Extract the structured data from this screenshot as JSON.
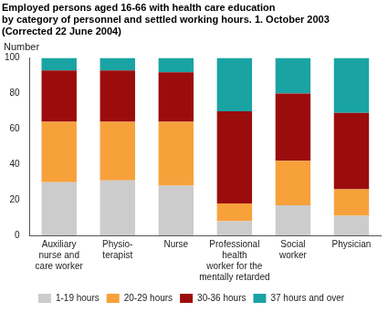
{
  "chart_data": {
    "type": "bar",
    "title": [
      "Employed persons aged 16-66 with health care education",
      "by category of personnel and settled working hours. 1. October 2003",
      "(Corrected 22 June 2004)"
    ],
    "y_label": "Number",
    "categories": [
      [
        "Auxiliary",
        "nurse and",
        "care worker"
      ],
      [
        "Physio-",
        "terapist"
      ],
      [
        "Nurse"
      ],
      [
        "Professional",
        "health",
        "worker for the",
        "mentally retarded"
      ],
      [
        "Social",
        "worker"
      ],
      [
        "Physician"
      ]
    ],
    "series": [
      {
        "name": "1-19 hours",
        "color": "#cccccc",
        "values": [
          30,
          31,
          28,
          8,
          17,
          11
        ]
      },
      {
        "name": "20-29 hours",
        "color": "#f7a13b",
        "values": [
          34,
          33,
          36,
          10,
          25,
          15
        ]
      },
      {
        "name": "30-36 hours",
        "color": "#9b0d0d",
        "values": [
          29,
          29,
          28,
          52,
          38,
          43
        ]
      },
      {
        "name": "37 hours and over",
        "color": "#1aa3a3",
        "values": [
          7,
          7,
          8,
          30,
          20,
          31
        ]
      }
    ],
    "ylim": [
      0,
      100
    ],
    "yticks": [
      0,
      20,
      40,
      60,
      80,
      100
    ],
    "stacked": true,
    "grid": false,
    "legend": "bottom"
  }
}
